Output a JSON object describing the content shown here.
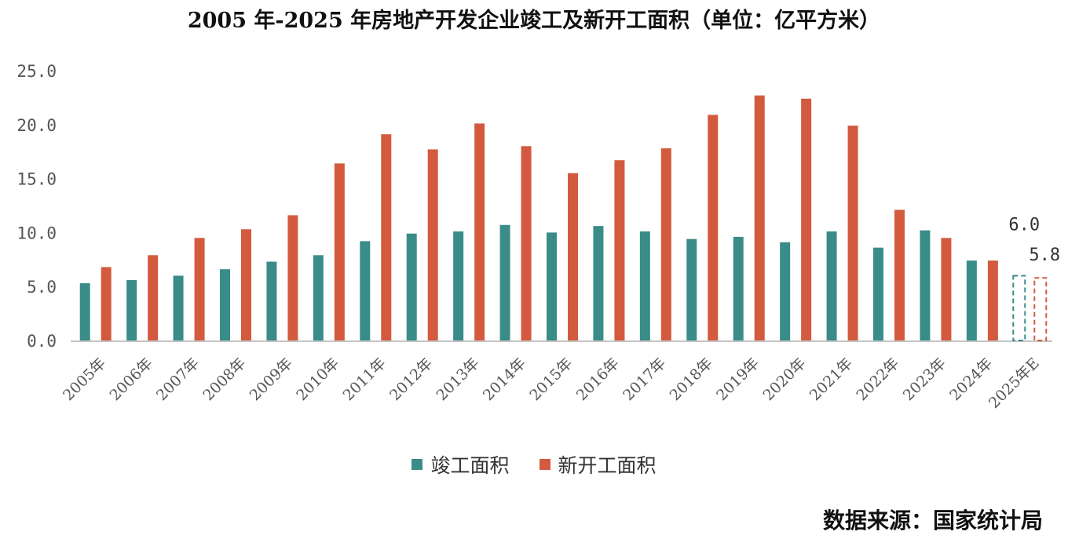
{
  "title": "2005 年-2025 年房地产开发企业竣工及新开工面积（单位：亿平方米）",
  "source": "数据来源：国家统计局",
  "colors": {
    "completed": "#3a8c89",
    "started": "#d35a3e",
    "axis": "#b0b0b0",
    "tick_text": "#555555"
  },
  "chart_data": {
    "type": "bar",
    "title": "2005 年-2025 年房地产开发企业竣工及新开工面积（单位：亿平方米）",
    "xlabel": "",
    "ylabel": "",
    "ylim": [
      0,
      25
    ],
    "yticks": [
      "0.0",
      "5.0",
      "10.0",
      "15.0",
      "20.0",
      "25.0"
    ],
    "grid": false,
    "legend_position": "bottom",
    "categories": [
      "2005年",
      "2006年",
      "2007年",
      "2008年",
      "2009年",
      "2010年",
      "2011年",
      "2012年",
      "2013年",
      "2014年",
      "2015年",
      "2016年",
      "2017年",
      "2018年",
      "2019年",
      "2020年",
      "2021年",
      "2022年",
      "2023年",
      "2024年",
      "2025年E"
    ],
    "series": [
      {
        "name": "竣工面积",
        "color": "#3a8c89",
        "values": [
          5.3,
          5.6,
          6.0,
          6.6,
          7.3,
          7.9,
          9.2,
          9.9,
          10.1,
          10.7,
          10.0,
          10.6,
          10.1,
          9.4,
          9.6,
          9.1,
          10.1,
          8.6,
          10.2,
          7.4,
          6.0
        ]
      },
      {
        "name": "新开工面积",
        "color": "#d35a3e",
        "values": [
          6.8,
          7.9,
          9.5,
          10.3,
          11.6,
          16.4,
          19.1,
          17.7,
          20.1,
          18.0,
          15.5,
          16.7,
          17.8,
          20.9,
          22.7,
          22.4,
          19.9,
          12.1,
          9.5,
          7.4,
          5.8
        ]
      }
    ],
    "annotations": [
      {
        "category": "2025年E",
        "series": "竣工面积",
        "text": "6.0"
      },
      {
        "category": "2025年E",
        "series": "新开工面积",
        "text": "5.8"
      }
    ],
    "estimated_categories": [
      "2025年E"
    ]
  }
}
